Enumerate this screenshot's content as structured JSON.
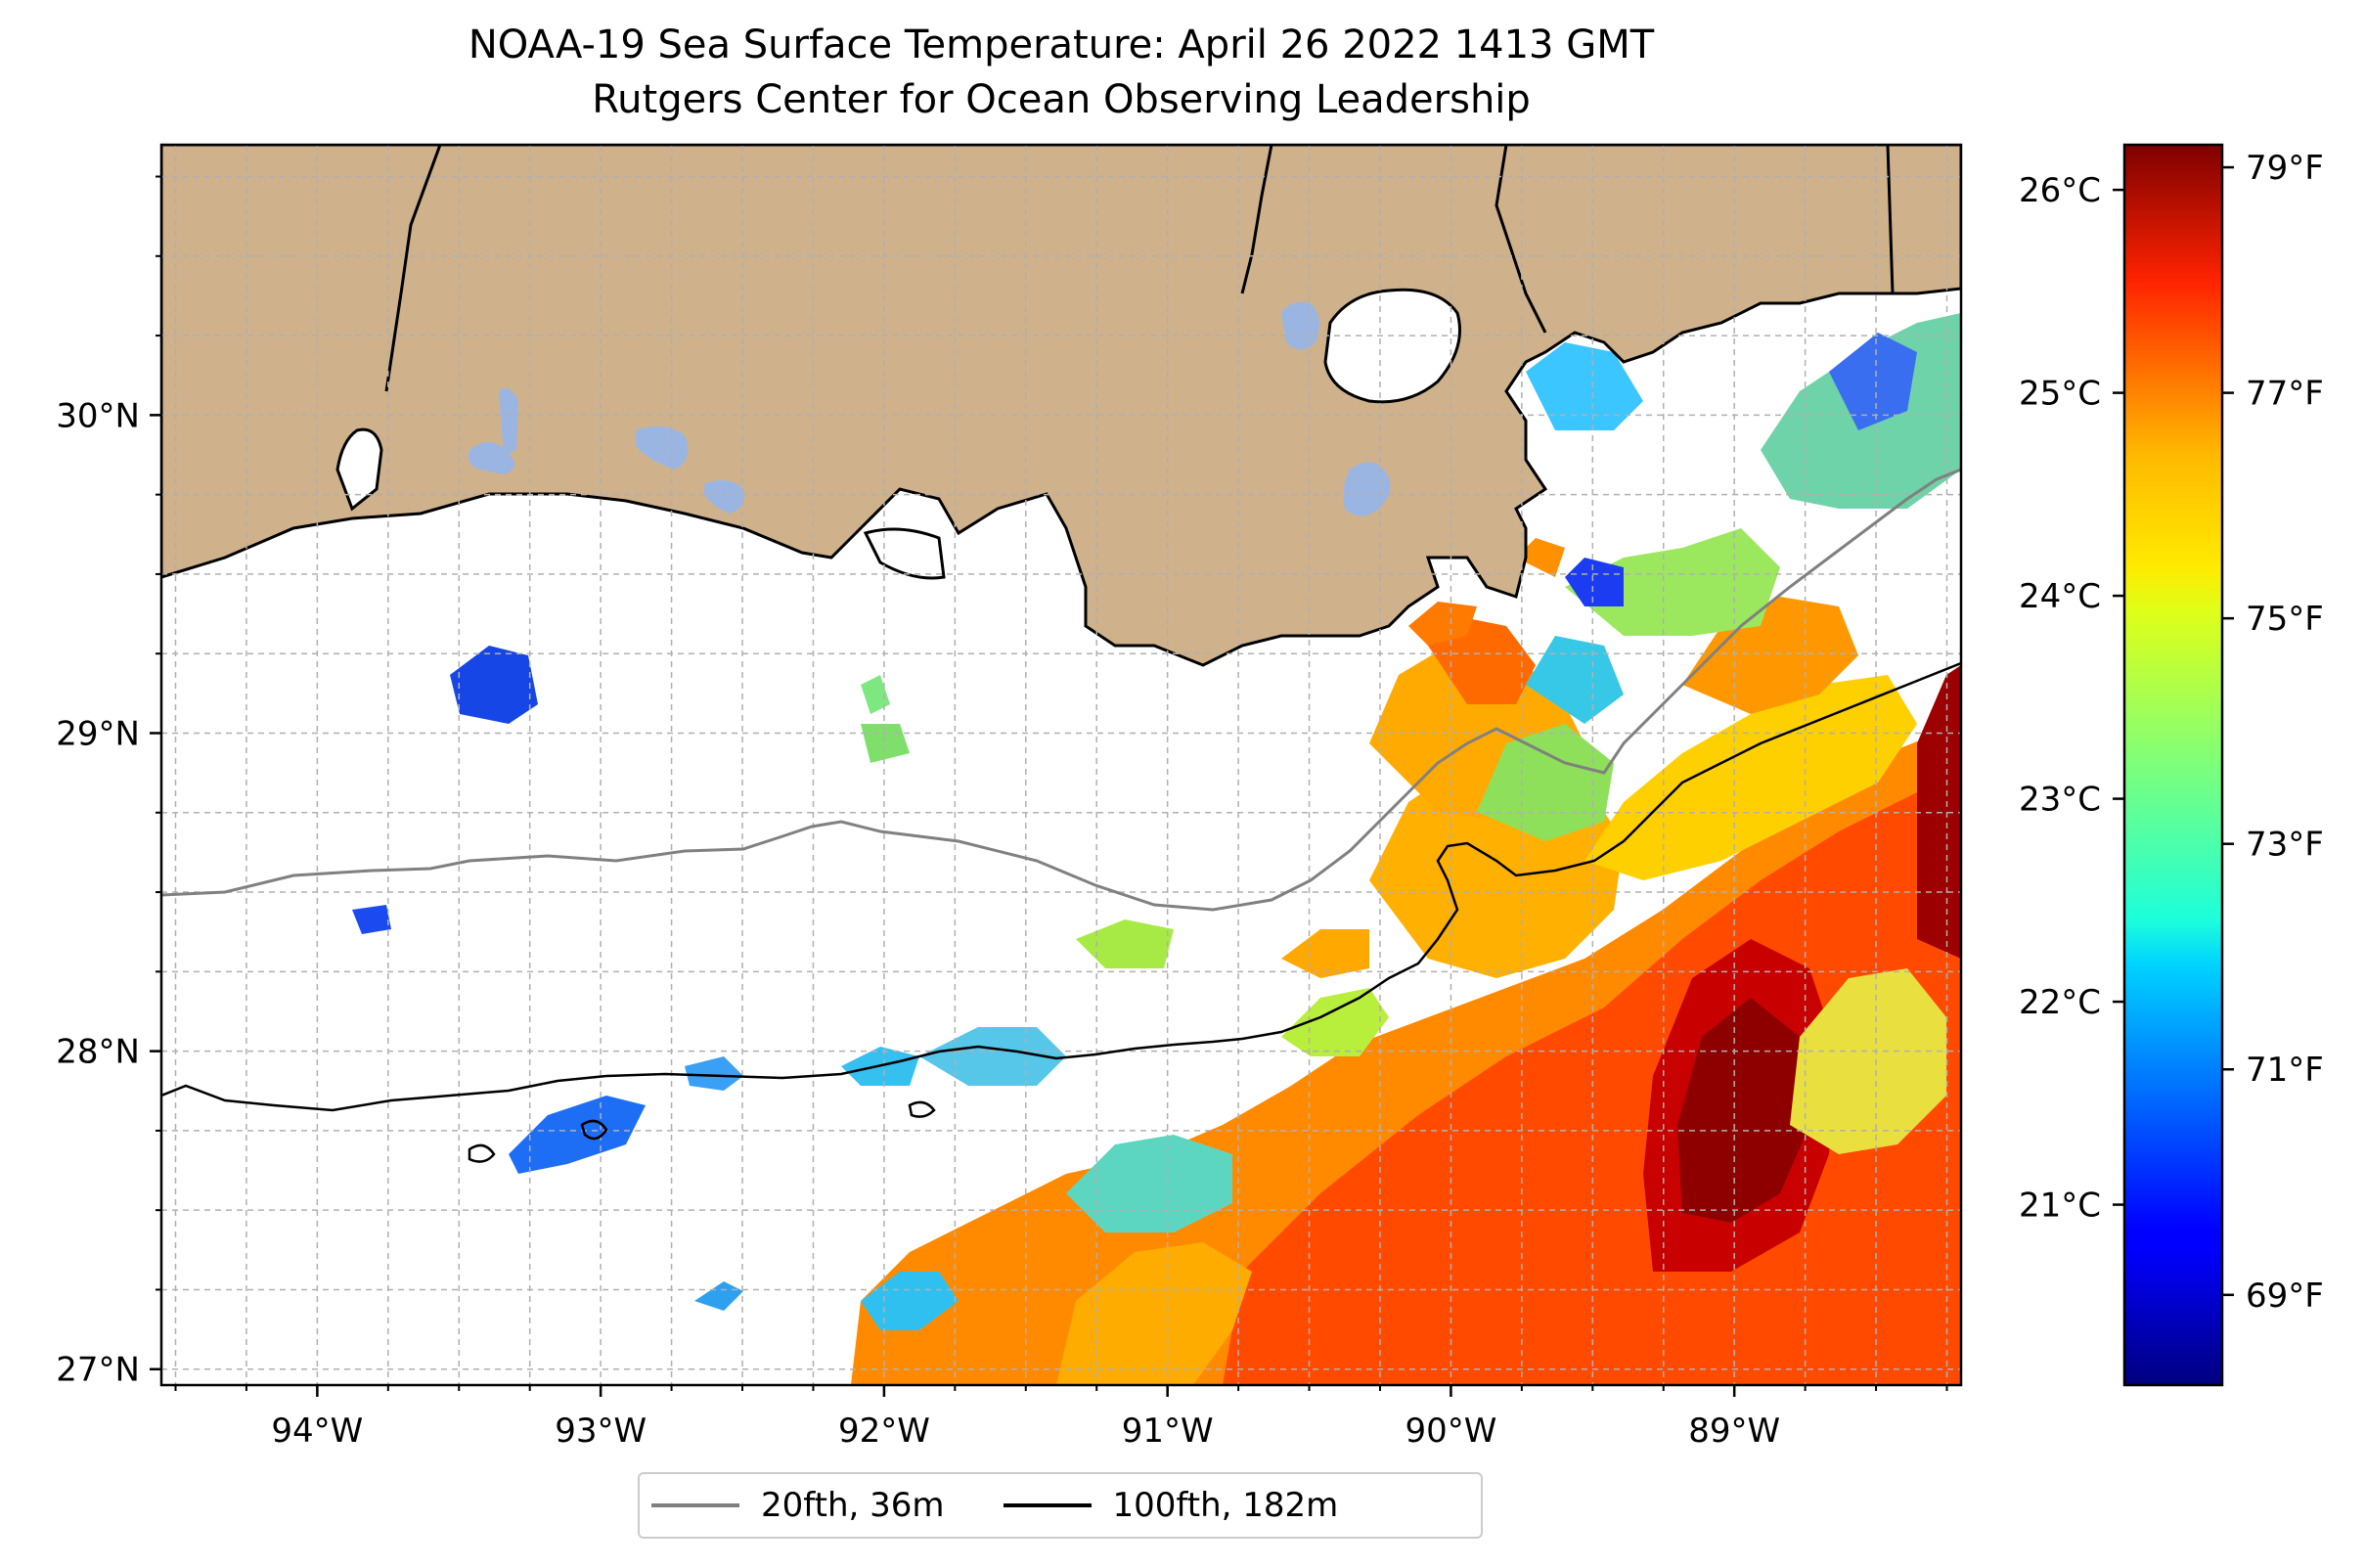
{
  "title": "NOAA-19 Sea Surface Temperature: April 26 2022 1413 GMT",
  "subtitle": "Rutgers Center for Ocean Observing Leadership",
  "map": {
    "lon_ticks": [
      {
        "value": -94,
        "label": "94°W"
      },
      {
        "value": -93,
        "label": "93°W"
      },
      {
        "value": -92,
        "label": "92°W"
      },
      {
        "value": -91,
        "label": "91°W"
      },
      {
        "value": -90,
        "label": "90°W"
      },
      {
        "value": -89,
        "label": "89°W"
      }
    ],
    "lat_ticks": [
      {
        "value": 30,
        "label": "30°N"
      },
      {
        "value": 29,
        "label": "29°N"
      },
      {
        "value": 28,
        "label": "28°N"
      },
      {
        "value": 27,
        "label": "27°N"
      }
    ],
    "lon_range": [
      -94.55,
      -88.2
    ],
    "lat_range": [
      26.95,
      30.85
    ],
    "land_color": "#cfb28b",
    "water_body_color": "#9bb5e3",
    "grid": "dashed"
  },
  "colorbar": {
    "celsius_ticks": [
      {
        "value": 26,
        "label": "26°C"
      },
      {
        "value": 25,
        "label": "25°C"
      },
      {
        "value": 24,
        "label": "24°C"
      },
      {
        "value": 23,
        "label": "23°C"
      },
      {
        "value": 22,
        "label": "22°C"
      },
      {
        "value": 21,
        "label": "21°C"
      }
    ],
    "fahrenheit_ticks": [
      {
        "value": 79,
        "label": "79°F"
      },
      {
        "value": 77,
        "label": "77°F"
      },
      {
        "value": 75,
        "label": "75°F"
      },
      {
        "value": 73,
        "label": "73°F"
      },
      {
        "value": 71,
        "label": "71°F"
      },
      {
        "value": 69,
        "label": "69°F"
      }
    ],
    "range_f": [
      68.2,
      79.2
    ],
    "colormap": "jet"
  },
  "legend": {
    "items": [
      {
        "label": "20fth, 36m",
        "color": "#808080"
      },
      {
        "label": "100fth, 182m",
        "color": "#000000"
      }
    ]
  }
}
